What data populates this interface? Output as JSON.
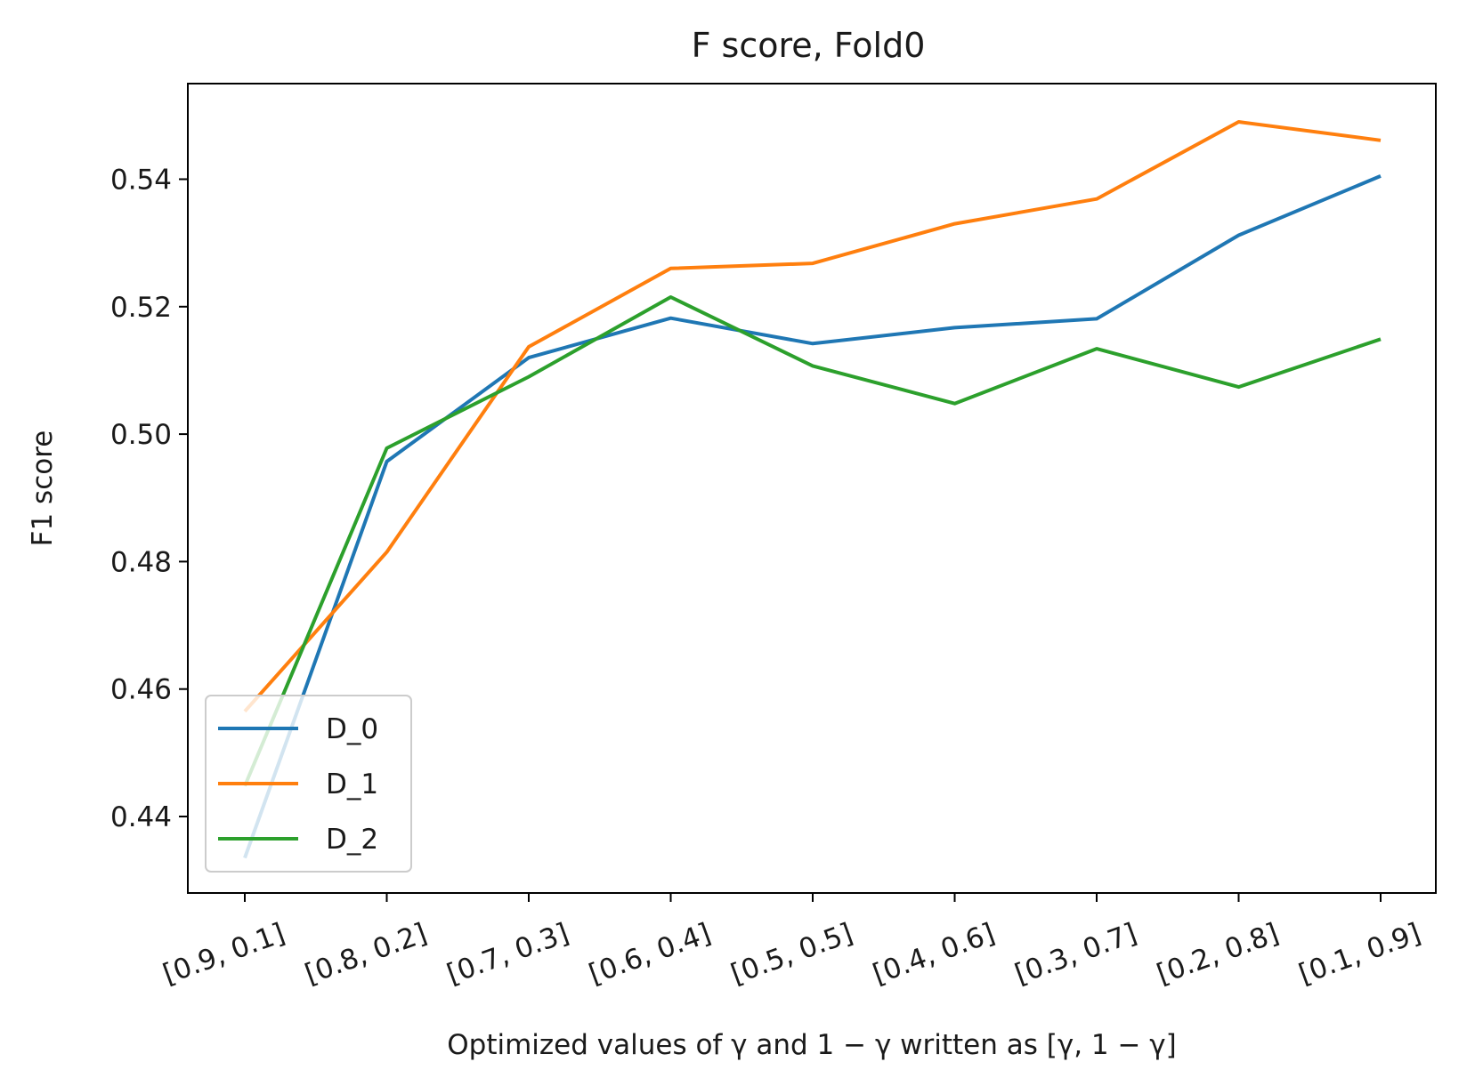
{
  "chart_data": {
    "type": "line",
    "title": "F score, Fold0",
    "xlabel": "Optimized values of γ and 1 − γ written as [γ, 1 − γ]",
    "ylabel": "F1 score",
    "categories": [
      "[0.9, 0.1]",
      "[0.8, 0.2]",
      "[0.7, 0.3]",
      "[0.6, 0.4]",
      "[0.5, 0.5]",
      "[0.4, 0.6]",
      "[0.3, 0.7]",
      "[0.2, 0.8]",
      "[0.1, 0.9]"
    ],
    "ylim": [
      0.428,
      0.555
    ],
    "yticks": [
      0.44,
      0.46,
      0.48,
      0.5,
      0.52,
      0.54
    ],
    "ytick_labels": [
      "0.44",
      "0.46",
      "0.48",
      "0.50",
      "0.52",
      "0.54"
    ],
    "grid": false,
    "legend_position": "lower-left",
    "series": [
      {
        "name": "D_0",
        "color": "#1f77b4",
        "values": [
          0.4335,
          0.4957,
          0.512,
          0.5182,
          0.5142,
          0.5167,
          0.5181,
          0.5312,
          0.5405
        ]
      },
      {
        "name": "D_1",
        "color": "#ff7f0e",
        "values": [
          0.4565,
          0.4815,
          0.5137,
          0.526,
          0.5268,
          0.533,
          0.5369,
          0.549,
          0.5461
        ]
      },
      {
        "name": "D_2",
        "color": "#2ca02c",
        "values": [
          0.4448,
          0.4978,
          0.509,
          0.5215,
          0.5107,
          0.5048,
          0.5134,
          0.5074,
          0.5149
        ]
      }
    ]
  }
}
